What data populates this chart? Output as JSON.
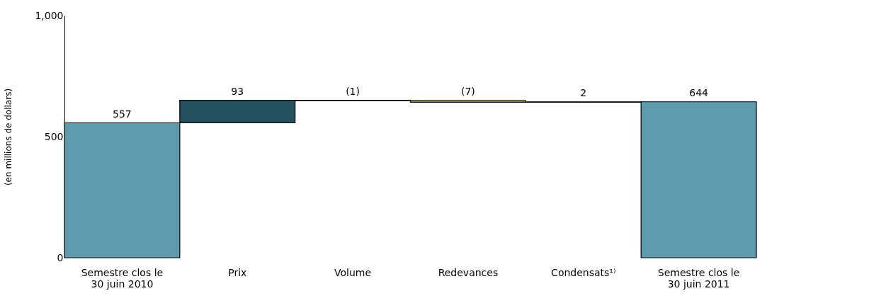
{
  "chart_data": {
    "type": "bar",
    "ylabel": "(en millions de dollars)",
    "categories": [
      "Semestre clos le\n30 juin 2010",
      "Prix",
      "Volume",
      "Redevances",
      "Condensats¹⁾",
      "Semestre clos le\n30 juin 2011"
    ],
    "values": [
      557,
      93,
      -1,
      -7,
      2,
      644
    ],
    "base": [
      0,
      557,
      650,
      649,
      642,
      0
    ],
    "colors": [
      "#5f9baf",
      "#22505f",
      "#22505f",
      "#b5b800",
      "#22505f",
      "#5f9baf"
    ],
    "value_labels": [
      "557",
      "93",
      "(1)",
      "(7)",
      "2",
      "644"
    ],
    "ylim": [
      0,
      1000
    ],
    "yticks": [
      0,
      500,
      {
        "value": 1000,
        "label": "1,000"
      }
    ],
    "grid": false
  }
}
